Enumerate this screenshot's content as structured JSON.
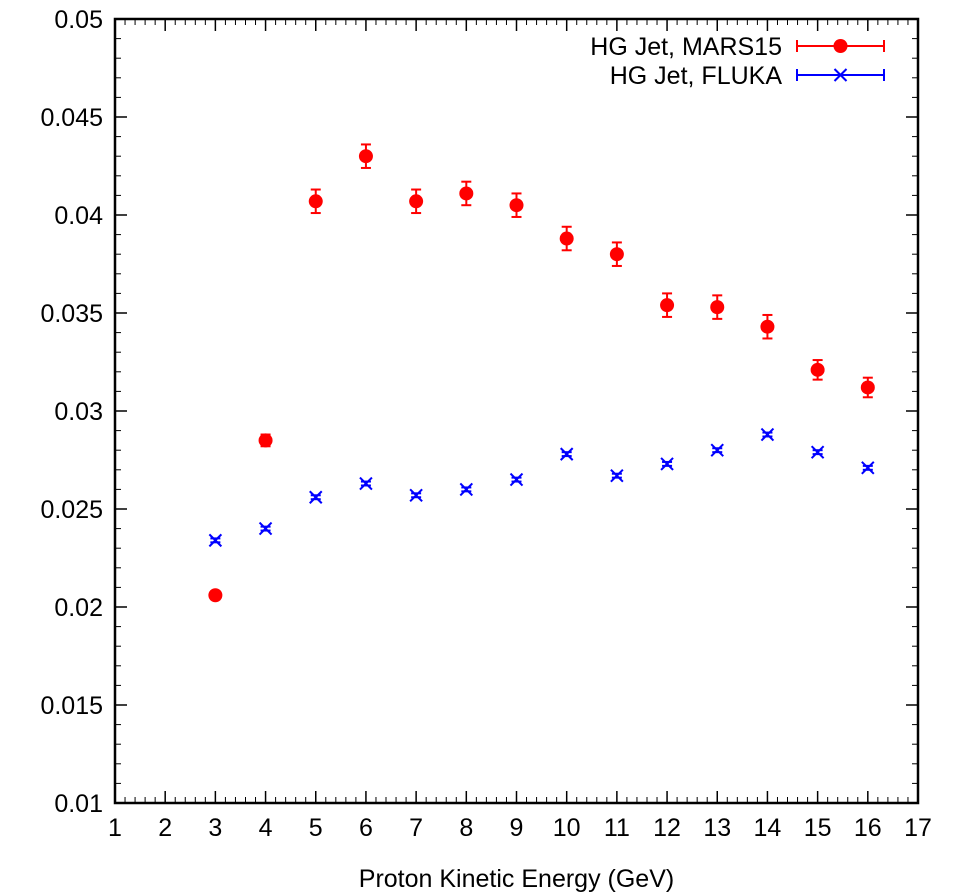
{
  "chart_data": {
    "type": "scatter",
    "title": "",
    "xlabel": "Proton Kinetic Energy (GeV)",
    "ylabel": "",
    "xlim": [
      1,
      17
    ],
    "ylim": [
      0.01,
      0.05
    ],
    "xticks": [
      "1",
      "2",
      "3",
      "4",
      "5",
      "6",
      "7",
      "8",
      "9",
      "10",
      "11",
      "12",
      "13",
      "14",
      "15",
      "16",
      "17"
    ],
    "yticks": [
      "0.01",
      "0.015",
      "0.02",
      "0.025",
      "0.03",
      "0.035",
      "0.04",
      "0.045",
      "0.05"
    ],
    "grid": false,
    "legend_position": "top-right",
    "series": [
      {
        "name": "HG Jet, MARS15",
        "color": "#ff0000",
        "marker": "filled-circle",
        "x": [
          3,
          4,
          5,
          6,
          7,
          8,
          9,
          10,
          11,
          12,
          13,
          14,
          15,
          16
        ],
        "y": [
          0.0206,
          0.0285,
          0.0407,
          0.043,
          0.0407,
          0.0411,
          0.0405,
          0.0388,
          0.038,
          0.0354,
          0.0353,
          0.0343,
          0.0321,
          0.0312
        ],
        "err": [
          0.0002,
          0.0003,
          0.0006,
          0.0006,
          0.0006,
          0.0006,
          0.0006,
          0.0006,
          0.0006,
          0.0006,
          0.0006,
          0.0006,
          0.0005,
          0.0005
        ]
      },
      {
        "name": "HG Jet, FLUKA",
        "color": "#0000ff",
        "marker": "x",
        "x": [
          3,
          4,
          5,
          6,
          7,
          8,
          9,
          10,
          11,
          12,
          13,
          14,
          15,
          16
        ],
        "y": [
          0.0234,
          0.024,
          0.0256,
          0.0263,
          0.0257,
          0.026,
          0.0265,
          0.0278,
          0.0267,
          0.0273,
          0.028,
          0.0288,
          0.0279,
          0.0271
        ],
        "err": [
          0.0001,
          0.0001,
          0.0001,
          0.0001,
          0.0001,
          0.0001,
          0.0001,
          0.0001,
          0.0001,
          0.0001,
          0.0001,
          0.0001,
          0.0001,
          0.0001
        ]
      }
    ]
  }
}
